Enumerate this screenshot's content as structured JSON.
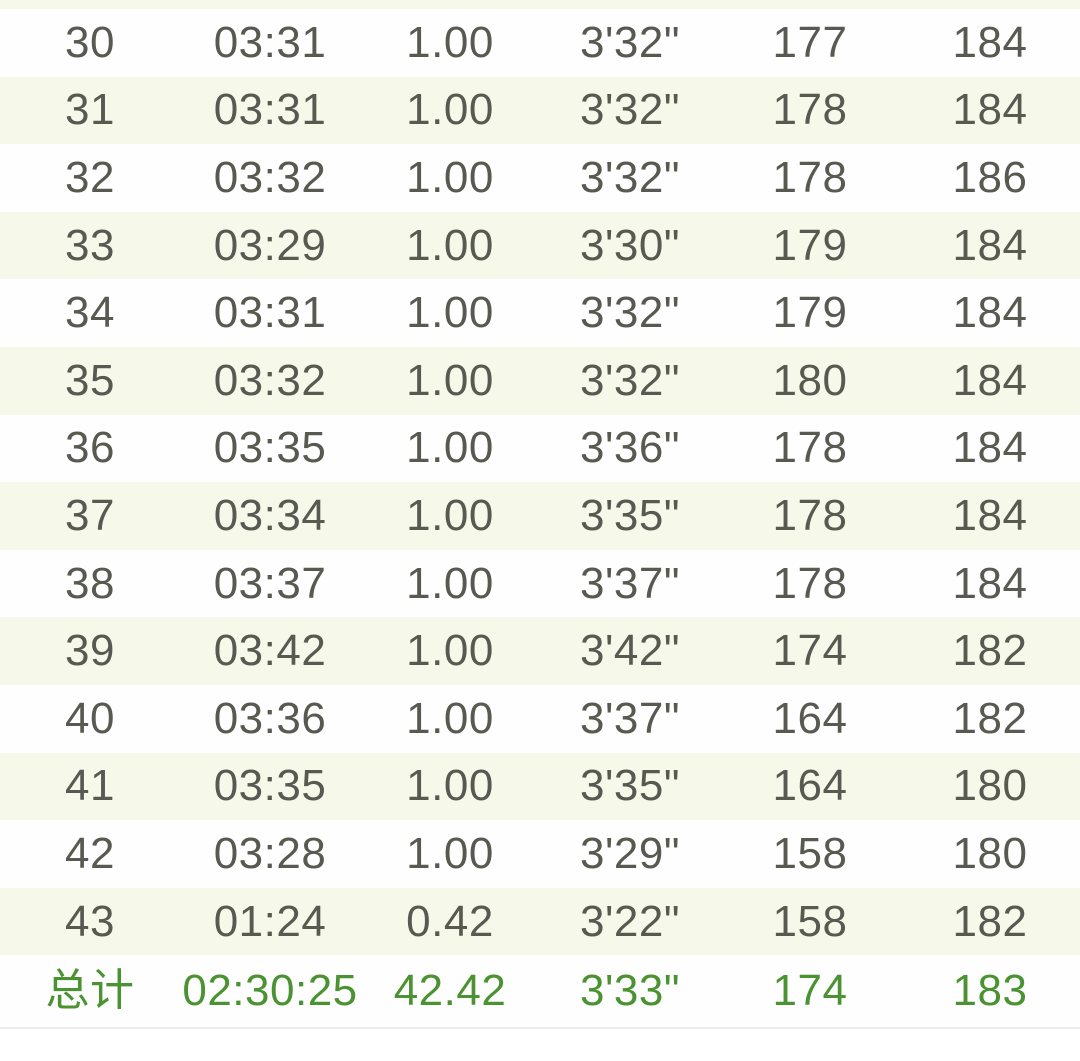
{
  "colors": {
    "accent_green": "#4b9232",
    "row_even_bg": "#fefefe",
    "row_odd_bg": "#f6f8ea",
    "text_gray": "#585a51",
    "divider": "#ebebeb"
  },
  "table": {
    "column_semantics": [
      "lap",
      "time",
      "distance",
      "pace",
      "heart-rate",
      "cadence"
    ],
    "rows": [
      [
        "30",
        "03:31",
        "1.00",
        "3'32\"",
        "177",
        "184"
      ],
      [
        "31",
        "03:31",
        "1.00",
        "3'32\"",
        "178",
        "184"
      ],
      [
        "32",
        "03:32",
        "1.00",
        "3'32\"",
        "178",
        "186"
      ],
      [
        "33",
        "03:29",
        "1.00",
        "3'30\"",
        "179",
        "184"
      ],
      [
        "34",
        "03:31",
        "1.00",
        "3'32\"",
        "179",
        "184"
      ],
      [
        "35",
        "03:32",
        "1.00",
        "3'32\"",
        "180",
        "184"
      ],
      [
        "36",
        "03:35",
        "1.00",
        "3'36\"",
        "178",
        "184"
      ],
      [
        "37",
        "03:34",
        "1.00",
        "3'35\"",
        "178",
        "184"
      ],
      [
        "38",
        "03:37",
        "1.00",
        "3'37\"",
        "178",
        "184"
      ],
      [
        "39",
        "03:42",
        "1.00",
        "3'42\"",
        "174",
        "182"
      ],
      [
        "40",
        "03:36",
        "1.00",
        "3'37\"",
        "164",
        "182"
      ],
      [
        "41",
        "03:35",
        "1.00",
        "3'35\"",
        "164",
        "180"
      ],
      [
        "42",
        "03:28",
        "1.00",
        "3'29\"",
        "158",
        "180"
      ],
      [
        "43",
        "01:24",
        "0.42",
        "3'22\"",
        "158",
        "182"
      ]
    ],
    "total_row": [
      "总计",
      "02:30:25",
      "42.42",
      "3'33\"",
      "174",
      "183"
    ]
  }
}
